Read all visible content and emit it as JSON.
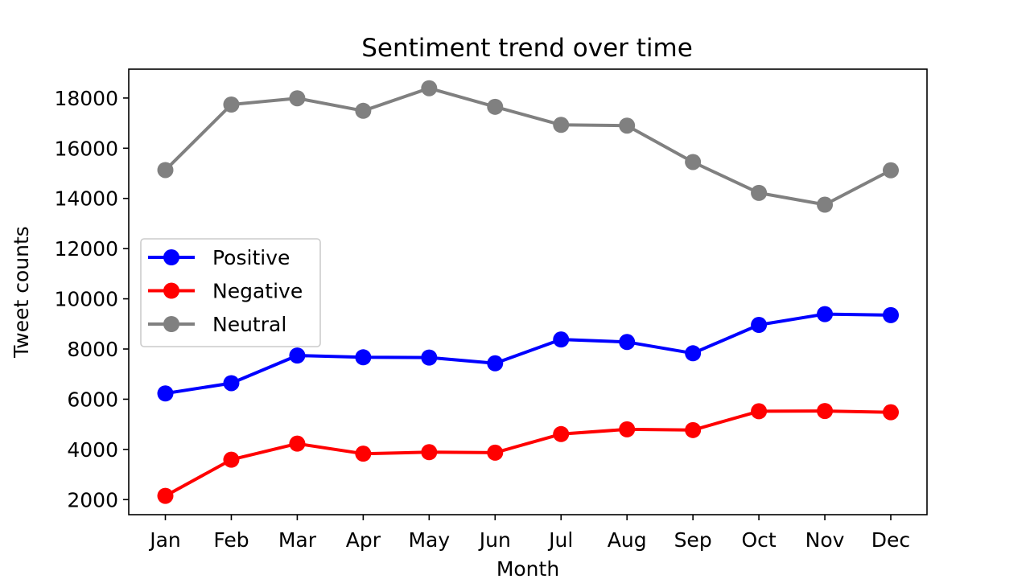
{
  "chart_data": {
    "type": "line",
    "title": "Sentiment trend over time",
    "xlabel": "Month",
    "ylabel": "Tweet counts",
    "categories": [
      "Jan",
      "Feb",
      "Mar",
      "Apr",
      "May",
      "Jun",
      "Jul",
      "Aug",
      "Sep",
      "Oct",
      "Nov",
      "Dec"
    ],
    "y_ticks": [
      2000,
      4000,
      6000,
      8000,
      10000,
      12000,
      14000,
      16000,
      18000
    ],
    "ylim": [
      1400,
      19150
    ],
    "grid": false,
    "legend_position": "center-left",
    "series": [
      {
        "name": "Positive",
        "color": "#0000ff",
        "marker": "circle",
        "values": [
          6230,
          6640,
          7740,
          7670,
          7660,
          7430,
          8380,
          8280,
          7830,
          8960,
          9390,
          9350
        ]
      },
      {
        "name": "Negative",
        "color": "#ff0000",
        "marker": "circle",
        "values": [
          2150,
          3590,
          4230,
          3830,
          3890,
          3870,
          4610,
          4800,
          4770,
          5520,
          5530,
          5480
        ]
      },
      {
        "name": "Neutral",
        "color": "#808080",
        "marker": "circle",
        "values": [
          15130,
          17740,
          17990,
          17490,
          18390,
          17650,
          16930,
          16900,
          15450,
          14220,
          13750,
          15120
        ]
      }
    ]
  }
}
